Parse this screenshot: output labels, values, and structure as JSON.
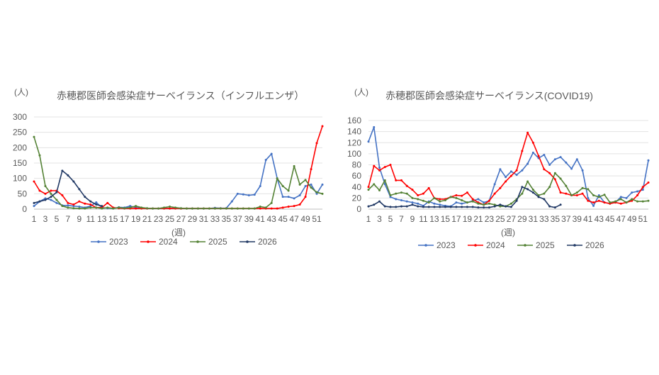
{
  "chart_data": [
    {
      "type": "line",
      "title": "赤穂郡医師会感染症サーベイランス（インフルエンザ）",
      "unit_label": "(人)",
      "xlabel": "(週)",
      "ylabel": "",
      "ylim": [
        0,
        300
      ],
      "yticks": [
        0,
        50,
        100,
        150,
        200,
        250,
        300
      ],
      "x": [
        1,
        2,
        3,
        4,
        5,
        6,
        7,
        8,
        9,
        10,
        11,
        12,
        13,
        14,
        15,
        16,
        17,
        18,
        19,
        20,
        21,
        22,
        23,
        24,
        25,
        26,
        27,
        28,
        29,
        30,
        31,
        32,
        33,
        34,
        35,
        36,
        37,
        38,
        39,
        40,
        41,
        42,
        43,
        44,
        45,
        46,
        47,
        48,
        49,
        50,
        51,
        52
      ],
      "xtick_labels": [
        "1",
        "3",
        "5",
        "7",
        "9",
        "11",
        "13",
        "15",
        "17",
        "19",
        "21",
        "23",
        "25",
        "27",
        "29",
        "31",
        "33",
        "35",
        "37",
        "39",
        "41",
        "43",
        "45",
        "47",
        "49",
        "51"
      ],
      "grid": true,
      "legend_position": "bottom",
      "series": [
        {
          "name": "2023",
          "color": "#4472C4",
          "values": [
            10,
            25,
            35,
            30,
            20,
            12,
            12,
            10,
            8,
            5,
            10,
            22,
            5,
            3,
            2,
            6,
            5,
            10,
            5,
            3,
            2,
            2,
            2,
            2,
            2,
            3,
            2,
            2,
            2,
            2,
            2,
            2,
            4,
            3,
            3,
            25,
            50,
            48,
            45,
            47,
            75,
            160,
            180,
            100,
            40,
            40,
            35,
            45,
            75,
            80,
            50,
            80
          ]
        },
        {
          "name": "2024",
          "color": "#FF0000",
          "values": [
            90,
            60,
            50,
            60,
            60,
            45,
            20,
            15,
            25,
            18,
            15,
            5,
            5,
            20,
            5,
            3,
            2,
            2,
            2,
            2,
            2,
            2,
            2,
            2,
            2,
            2,
            2,
            2,
            2,
            2,
            2,
            2,
            2,
            2,
            2,
            2,
            2,
            2,
            2,
            2,
            2,
            2,
            2,
            2,
            5,
            8,
            10,
            15,
            40,
            130,
            215,
            270
          ]
        },
        {
          "name": "2025",
          "color": "#548235",
          "values": [
            235,
            175,
            75,
            50,
            30,
            10,
            5,
            3,
            2,
            2,
            5,
            5,
            2,
            5,
            2,
            5,
            3,
            5,
            10,
            5,
            3,
            2,
            2,
            5,
            8,
            5,
            3,
            2,
            2,
            2,
            2,
            2,
            2,
            2,
            2,
            2,
            2,
            2,
            2,
            2,
            8,
            5,
            20,
            100,
            75,
            60,
            140,
            80,
            95,
            70,
            55,
            50
          ]
        },
        {
          "name": "2026",
          "color": "#203864",
          "values": [
            20,
            25,
            30,
            40,
            55,
            125,
            110,
            90,
            65,
            40,
            25,
            15,
            10,
            null,
            null,
            null,
            null,
            null,
            null,
            null,
            null,
            null,
            null,
            null,
            null,
            null,
            null,
            null,
            null,
            null,
            null,
            null,
            null,
            null,
            null,
            null,
            null,
            null,
            null,
            null,
            null,
            null,
            null,
            null,
            null,
            null,
            null,
            null,
            null,
            null,
            null,
            null
          ]
        }
      ]
    },
    {
      "type": "line",
      "title": "赤穂郡医師会感染症サーベイランス(COVID19)",
      "unit_label": "(人)",
      "xlabel": "(週)",
      "ylabel": "",
      "ylim": [
        0,
        160
      ],
      "yticks": [
        0,
        20,
        40,
        60,
        80,
        100,
        120,
        140,
        160
      ],
      "x": [
        1,
        2,
        3,
        4,
        5,
        6,
        7,
        8,
        9,
        10,
        11,
        12,
        13,
        14,
        15,
        16,
        17,
        18,
        19,
        20,
        21,
        22,
        23,
        24,
        25,
        26,
        27,
        28,
        29,
        30,
        31,
        32,
        33,
        34,
        35,
        36,
        37,
        38,
        39,
        40,
        41,
        42,
        43,
        44,
        45,
        46,
        47,
        48,
        49,
        50,
        51,
        52
      ],
      "xtick_labels": [
        "1",
        "3",
        "5",
        "7",
        "9",
        "11",
        "13",
        "15",
        "17",
        "19",
        "21",
        "23",
        "25",
        "27",
        "29",
        "31",
        "33",
        "35",
        "37",
        "39",
        "41",
        "43",
        "45",
        "47",
        "49",
        "51"
      ],
      "grid": true,
      "legend_position": "bottom",
      "series": [
        {
          "name": "2023",
          "color": "#4472C4",
          "values": [
            122,
            148,
            75,
            45,
            22,
            18,
            16,
            14,
            12,
            10,
            6,
            14,
            10,
            8,
            6,
            5,
            12,
            10,
            12,
            15,
            18,
            12,
            15,
            45,
            72,
            58,
            68,
            62,
            70,
            82,
            102,
            92,
            98,
            80,
            90,
            94,
            84,
            73,
            90,
            70,
            20,
            6,
            25,
            12,
            10,
            12,
            22,
            20,
            30,
            32,
            35,
            88
          ]
        },
        {
          "name": "2024",
          "color": "#FF0000",
          "values": [
            40,
            78,
            70,
            76,
            80,
            52,
            52,
            42,
            35,
            25,
            28,
            38,
            20,
            18,
            18,
            22,
            25,
            24,
            30,
            18,
            12,
            8,
            15,
            28,
            38,
            50,
            60,
            70,
            105,
            138,
            120,
            96,
            72,
            65,
            54,
            30,
            28,
            25,
            25,
            28,
            15,
            12,
            15,
            12,
            10,
            12,
            10,
            12,
            15,
            25,
            40,
            48
          ]
        },
        {
          "name": "2025",
          "color": "#548235",
          "values": [
            35,
            45,
            34,
            52,
            25,
            28,
            30,
            28,
            20,
            18,
            15,
            12,
            20,
            14,
            16,
            22,
            20,
            16,
            12,
            14,
            10,
            8,
            10,
            8,
            5,
            5,
            10,
            18,
            28,
            50,
            35,
            25,
            28,
            40,
            65,
            55,
            42,
            25,
            30,
            38,
            36,
            25,
            22,
            26,
            12,
            14,
            18,
            12,
            18,
            14,
            14,
            15
          ]
        },
        {
          "name": "2026",
          "color": "#203864",
          "values": [
            5,
            8,
            14,
            5,
            4,
            4,
            5,
            5,
            8,
            5,
            4,
            4,
            4,
            4,
            4,
            4,
            4,
            4,
            4,
            4,
            3,
            3,
            3,
            5,
            8,
            5,
            4,
            15,
            40,
            36,
            30,
            22,
            18,
            5,
            3,
            8,
            null,
            null,
            null,
            null,
            null,
            null,
            null,
            null,
            null,
            null,
            null,
            null,
            null,
            null,
            null,
            null
          ]
        }
      ]
    }
  ]
}
